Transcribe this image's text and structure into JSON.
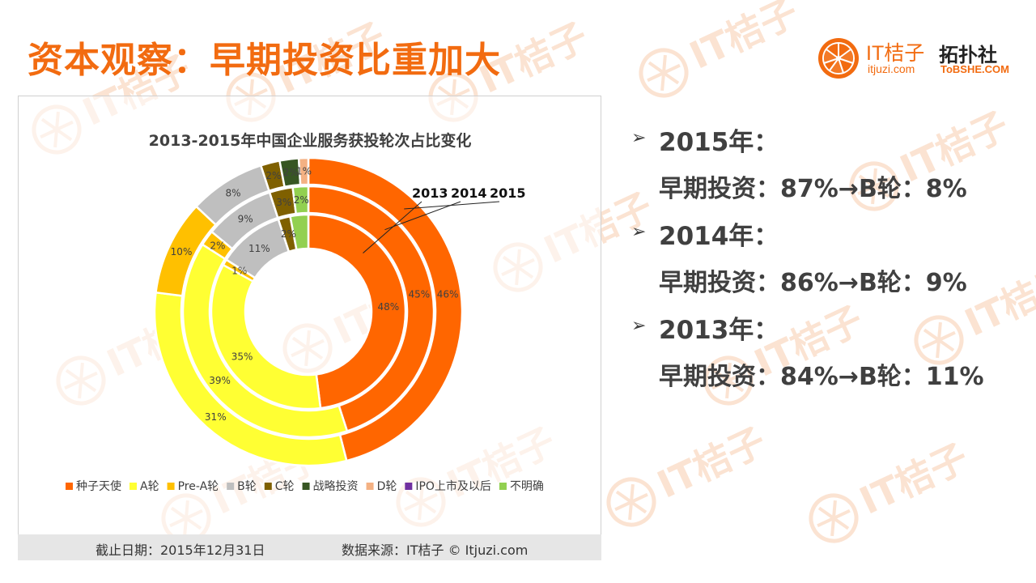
{
  "title": "资本观察：早期投资比重加大",
  "logo": {
    "brand": "IT桔子",
    "url": "itjuzi.com",
    "partner": "拓扑社",
    "partner_url": "ToBSHE.COM"
  },
  "watermark": "IT桔子",
  "colors": {
    "accent": "#f26b10",
    "seed": "#ff6600",
    "a_round": "#ffff33",
    "pre_a": "#ffc000",
    "b_round": "#bfbfbf",
    "c_round": "#7f6000",
    "strategic": "#375623",
    "d_round": "#f4b183",
    "ipo": "#7030a0",
    "unknown": "#92d050"
  },
  "chart_data": {
    "type": "donut",
    "title": "2013-2015年中国企业服务获投轮次占比变化",
    "ring_labels": [
      "2013",
      "2014",
      "2015"
    ],
    "legend_position": "bottom",
    "legend": [
      "种子天使",
      "A轮",
      "Pre-A轮",
      "B轮",
      "C轮",
      "战略投资",
      "D轮",
      "IPO上市及以后",
      "不明确"
    ],
    "series": [
      {
        "name": "2013",
        "ring": "inner",
        "values": [
          48,
          35,
          1,
          11,
          2,
          0,
          0,
          0,
          3
        ],
        "labels": [
          "48%",
          "35%",
          "1%",
          "11%",
          "2%",
          "",
          "",
          "",
          ""
        ]
      },
      {
        "name": "2014",
        "ring": "middle",
        "values": [
          45,
          39,
          2,
          9,
          3,
          0,
          0,
          0,
          2
        ],
        "labels": [
          "45%",
          "39%",
          "2%",
          "9%",
          "3%",
          "",
          "",
          "",
          "2%"
        ]
      },
      {
        "name": "2015",
        "ring": "outer",
        "values": [
          46,
          31,
          10,
          8,
          2,
          2,
          1,
          0,
          0
        ],
        "labels": [
          "46%",
          "31%",
          "10%",
          "8%",
          "2%",
          "2%",
          "1%",
          "",
          ""
        ]
      }
    ]
  },
  "footer": {
    "date": "截止日期：2015年12月31日",
    "source": "数据来源：IT桔子 © Itjuzi.com"
  },
  "bullets": [
    {
      "year": "2015年：",
      "detail": "早期投资：87%→B轮：8%"
    },
    {
      "year": "2014年：",
      "detail": "早期投资：86%→B轮：9%"
    },
    {
      "year": "2013年：",
      "detail": "早期投资：84%→B轮：11%"
    }
  ],
  "bullet_marker": "➢"
}
